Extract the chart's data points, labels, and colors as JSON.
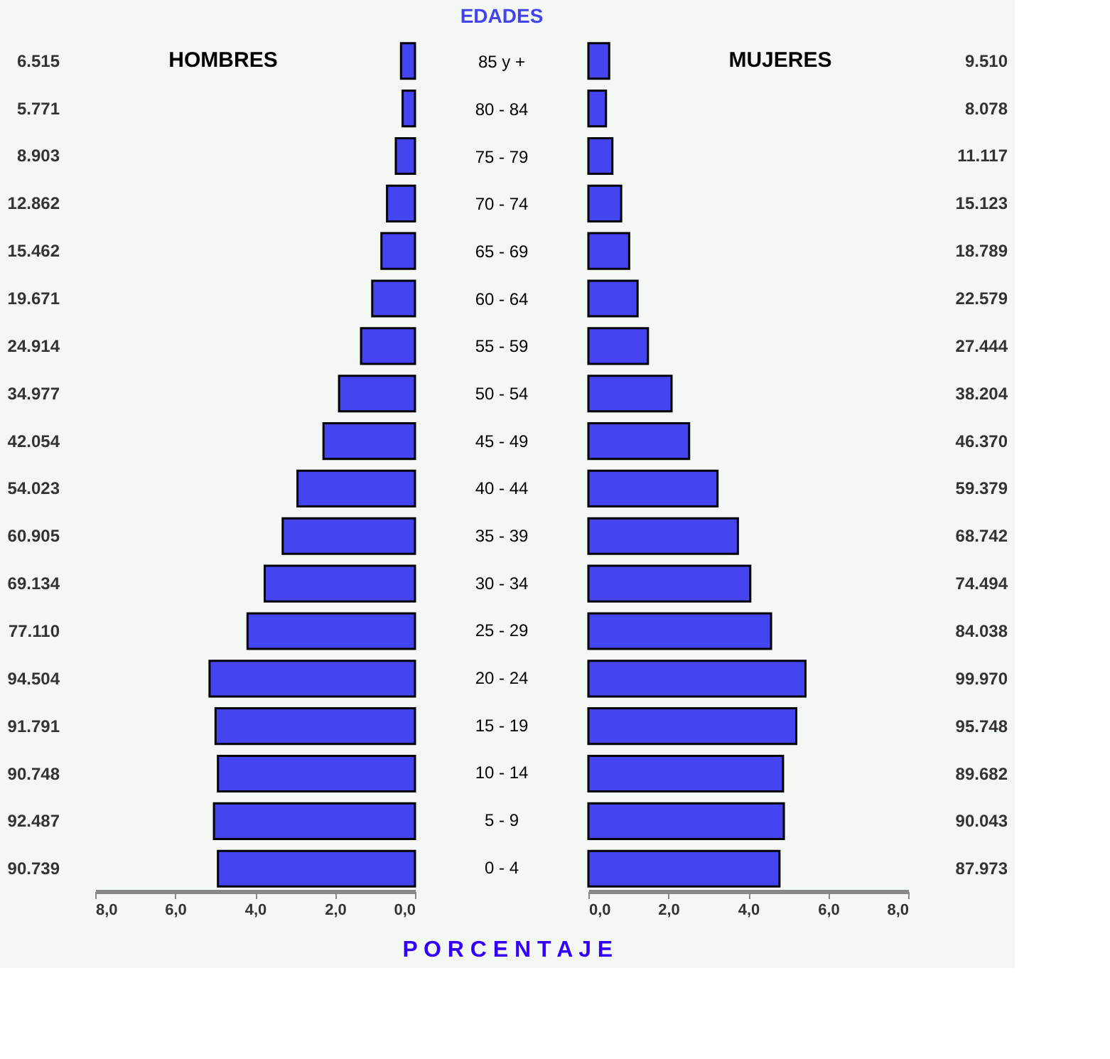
{
  "chart_data": [
    {
      "type": "bar",
      "orientation": "horizontal",
      "title": "HOMBRES",
      "xlabel": "P O R C E N T A J E",
      "color": "#4444f0",
      "categories": [
        null,
        null,
        null,
        null,
        null,
        null,
        null,
        null,
        null,
        null,
        null,
        null,
        null,
        null,
        null,
        null,
        null,
        null
      ],
      "values": [
        0.35,
        0.31,
        0.48,
        0.7,
        0.84,
        1.07,
        1.35,
        1.9,
        2.29,
        2.94,
        3.31,
        3.76,
        4.19,
        5.14,
        4.99,
        4.93,
        5.03,
        4.93
      ],
      "annotations": [
        "6.515",
        "5.771",
        "8.903",
        "12.862",
        "15.462",
        "19.671",
        "24.914",
        "34.977",
        "42.054",
        "54.023",
        "60.905",
        "69.134",
        "77.110",
        "94.504",
        "91.791",
        "90.748",
        "92.487",
        "90.739"
      ],
      "xlim": [
        8,
        0
      ],
      "xticks": [
        {
          "value": 8,
          "label": "8,0"
        },
        {
          "value": 6,
          "label": "6,0"
        },
        {
          "value": 4,
          "label": "4,0"
        },
        {
          "value": 2,
          "label": "2,0"
        },
        {
          "value": 0,
          "label": "0,0"
        }
      ]
    },
    {
      "type": "bar",
      "orientation": "horizontal",
      "title": "MUJERES",
      "ylabel": "EDADES",
      "color": "#4444f0",
      "categories": [
        "85 y +",
        "80 - 84",
        "75 - 79",
        "70 - 74",
        "65 - 69",
        "60 - 64",
        "55 - 59",
        "50 - 54",
        "45 - 49",
        "40 - 44",
        "35 - 39",
        "30 - 34",
        "25 - 29",
        "20 - 24",
        "15 - 19",
        "10 - 14",
        "5 - 9",
        "0 - 4"
      ],
      "values": [
        0.52,
        0.44,
        0.6,
        0.82,
        1.02,
        1.23,
        1.49,
        2.08,
        2.52,
        3.23,
        3.74,
        4.05,
        4.57,
        5.43,
        5.2,
        4.87,
        4.89,
        4.78
      ],
      "annotations": [
        "9.510",
        "8.078",
        "11.117",
        "15.123",
        "18.789",
        "22.579",
        "27.444",
        "38.204",
        "46.370",
        "59.379",
        "68.742",
        "74.494",
        "84.038",
        "99.970",
        "95.748",
        "89.682",
        "90.043",
        "87.973"
      ],
      "xlim": [
        0,
        8
      ],
      "xticks": [
        {
          "value": 0,
          "label": "0,0"
        },
        {
          "value": 2,
          "label": "2,0"
        },
        {
          "value": 4,
          "label": "4,0"
        },
        {
          "value": 6,
          "label": "6,0"
        },
        {
          "value": 8,
          "label": "8,0"
        }
      ]
    }
  ]
}
